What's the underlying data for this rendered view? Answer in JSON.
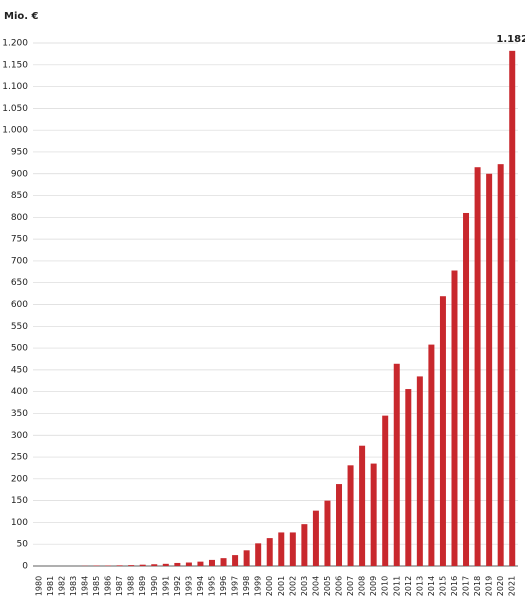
{
  "chart_data": {
    "type": "bar",
    "y_axis_label": "Mio. €",
    "categories": [
      "1980",
      "1981",
      "1982",
      "1983",
      "1984",
      "1985",
      "1986",
      "1987",
      "1988",
      "1989",
      "1990",
      "1991",
      "1992",
      "1993",
      "1994",
      "1995",
      "1996",
      "1997",
      "1998",
      "1999",
      "2000",
      "2001",
      "2002",
      "2003",
      "2004",
      "2005",
      "2006",
      "2007",
      "2008",
      "2009",
      "2010",
      "2011",
      "2012",
      "2013",
      "2014",
      "2015",
      "2016",
      "2017",
      "2018",
      "2019",
      "2020",
      "2021"
    ],
    "values": [
      0,
      0,
      0,
      0,
      0.5,
      1,
      1,
      1.5,
      2,
      3,
      4,
      5,
      7,
      8,
      10,
      14,
      18,
      25,
      36,
      52,
      64,
      77,
      77,
      96,
      127,
      150,
      188,
      231,
      276,
      235,
      345,
      464,
      406,
      435,
      508,
      619,
      678,
      810,
      915,
      900,
      922,
      1182
    ],
    "value_labels": [
      null,
      null,
      null,
      null,
      null,
      null,
      null,
      null,
      null,
      null,
      null,
      null,
      null,
      null,
      null,
      null,
      null,
      null,
      null,
      null,
      null,
      null,
      null,
      null,
      null,
      null,
      null,
      null,
      null,
      null,
      null,
      null,
      null,
      null,
      null,
      null,
      null,
      null,
      null,
      null,
      null,
      "1.182"
    ],
    "color": "#c8282d",
    "ylim": [
      0,
      1200
    ],
    "yticks": [
      0,
      50,
      100,
      150,
      200,
      250,
      300,
      350,
      400,
      450,
      500,
      550,
      600,
      650,
      700,
      750,
      800,
      850,
      900,
      950,
      {
        "value": 1000,
        "label": "1.000"
      },
      {
        "value": 1050,
        "label": "1.050"
      },
      {
        "value": 1100,
        "label": "1.100"
      },
      {
        "value": 1150,
        "label": "1.150"
      },
      {
        "value": 1200,
        "label": "1.200"
      }
    ],
    "grid": true
  }
}
